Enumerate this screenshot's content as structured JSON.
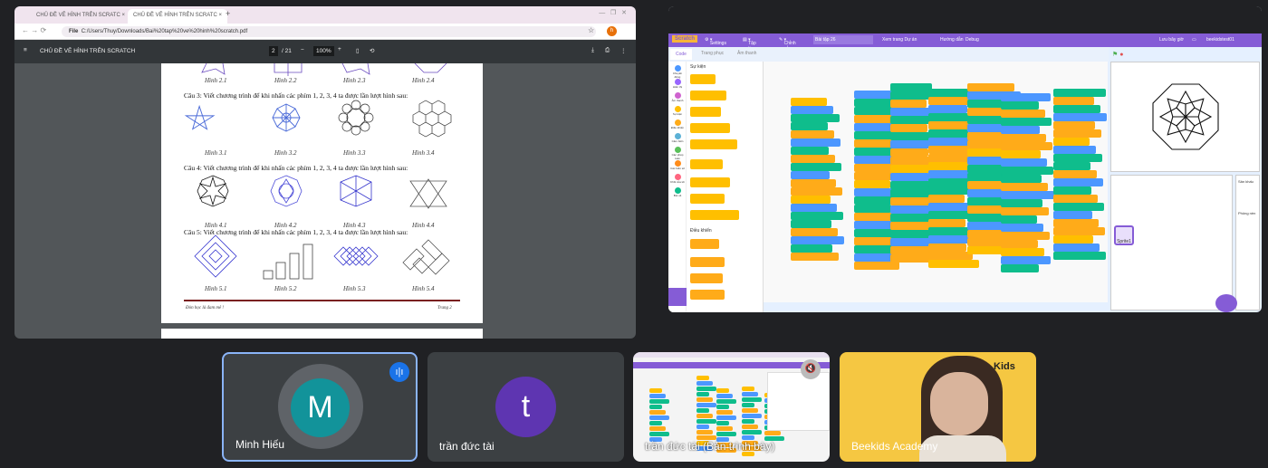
{
  "left_share": {
    "tabs": [
      {
        "label": "CHỦ ĐỀ VẼ HÌNH TRÊN SCRATC"
      },
      {
        "label": "CHỦ ĐỀ VẼ HÌNH TRÊN SCRATC"
      }
    ],
    "address": {
      "chip": "File",
      "url": "C:/Users/Thuy/Downloads/Bai%20tap%20ve%20hinh%20scratch.pdf",
      "profile_initial": "h"
    },
    "pdf": {
      "title": "CHỦ ĐỀ VẼ HÌNH TRÊN SCRATCH",
      "page_current": "2",
      "page_total": "/ 21",
      "zoom": "100%",
      "row2_captions": [
        "Hình 2.1",
        "Hình 2.2",
        "Hình 2.3",
        "Hình 2.4"
      ],
      "q3": "Câu 3: Viết chương trình để khi nhấn các phím 1, 2, 3, 4 ta được lần lượt hình sau:",
      "row3_captions": [
        "Hình 3.1",
        "Hình 3.2",
        "Hình 3.3",
        "Hình 3.4"
      ],
      "q4": "Câu 4: Viết chương trình để khi nhấn các phím 1, 2, 3, 4 ta được lần lượt hình sau:",
      "row4_captions": [
        "Hình 4.1",
        "Hình 4.2",
        "Hình 4.3",
        "Hình 4.4"
      ],
      "q5": "Câu 5: Viết chương trình để khi nhấn các phím 1, 2, 3, 4 ta được lần lượt hình sau:",
      "row5_captions": [
        "Hình 5.1",
        "Hình 5.2",
        "Hình 5.3",
        "Hình 5.4"
      ],
      "footer_left": "Đòn học là đam mê !",
      "footer_right": "Trang 2"
    }
  },
  "right_share": {
    "menu": {
      "settings": "Settings",
      "file": "Tập tin",
      "edit": "Chỉnh sửa",
      "project_title": "Bài tập 26",
      "see_project": "Xem trang Dự án",
      "tutorials": "Hướng dẫn",
      "debug": "Debug",
      "save_now": "Lưu bây giờ",
      "username": "beekidstest01"
    },
    "tabs": [
      "Code",
      "Trang phục",
      "Âm thanh"
    ],
    "palette_heading_events": "Sự kiện",
    "palette_heading_control": "Điều khiển",
    "categories": [
      "Chuyển động",
      "Hiển thị",
      "Âm thanh",
      "Sự kiện",
      "Điều khiển",
      "Cảm biến",
      "Các phép toán",
      "Các biến số",
      "Khối của tôi",
      "Bút vẽ"
    ],
    "sprite_label": "Sprite1",
    "stage_label": "Sân khấu",
    "backdrop_label": "Phông nền",
    "accent": "#855cd6"
  },
  "participants": [
    {
      "name": "Minh Hiếu",
      "initial": "M",
      "color": "#12939a",
      "speaking": true
    },
    {
      "name": "trần đức tài",
      "initial": "t",
      "color": "#5e35b1"
    },
    {
      "name": "trần đức tài (Bản trình bày)"
    },
    {
      "name": "Beekids Academy"
    }
  ]
}
